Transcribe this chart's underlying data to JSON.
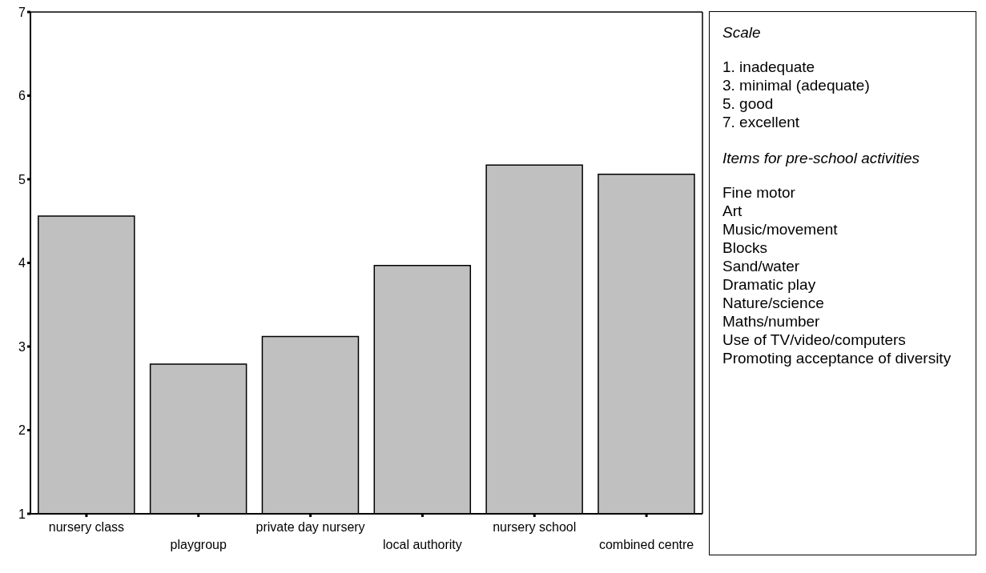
{
  "chart_data": [
    {
      "type": "bar",
      "categories": [
        "nursery class",
        "playgroup",
        "private day nursery",
        "local authority",
        "nursery school",
        "combined centre"
      ],
      "values": [
        4.56,
        2.79,
        3.12,
        3.97,
        5.17,
        5.06
      ],
      "color": "#c0c0c0",
      "ylim": [
        1,
        7
      ],
      "yticks": [
        1,
        2,
        3,
        4,
        5,
        6,
        7
      ],
      "grid": false,
      "legend": false
    },
    {
      "type": "other",
      "title": "Scale",
      "annotations": [
        "1.  inadequate",
        "3.  minimal (adequate)",
        "5.  good",
        "7.  excellent"
      ]
    },
    {
      "type": "other",
      "title": "Items for pre-school activities",
      "annotations": [
        "Fine motor",
        "Art",
        "Music/movement",
        "Blocks",
        "Sand/water",
        "Dramatic play",
        "Nature/science",
        "Maths/number",
        "Use of TV/video/computers",
        "Promoting acceptance of diversity"
      ]
    }
  ]
}
